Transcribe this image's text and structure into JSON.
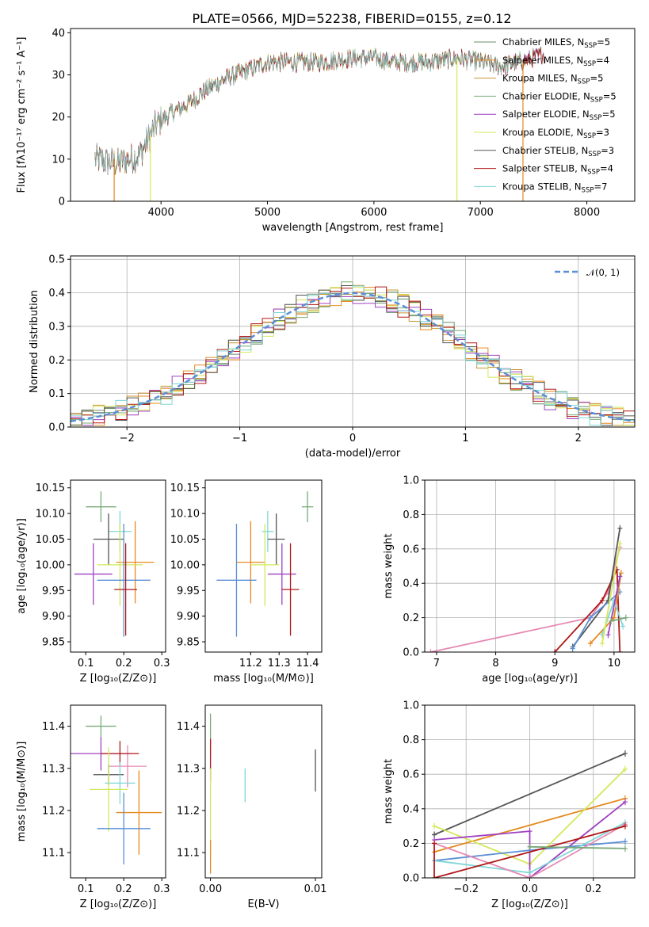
{
  "figure": {
    "title": "PLATE=0566, MJD=52238, FIBERID=0155, z=0.12"
  },
  "colors": {
    "cm_cat": "#6b8e6b",
    "sm_cat": "#e68a1e",
    "km_cat": "#c89633",
    "ce_cat": "#77aa77",
    "se_cat": "#a040c0",
    "ke_cat": "#d4e85a",
    "cs_cat": "#555555",
    "ss_cat": "#b01818",
    "ks_cat": "#7fd6d6"
  },
  "legend": {
    "entries": [
      {
        "label": "Chabrier MILES, N",
        "sub": "SSP",
        "tail": "=5",
        "color": "#6b8e6b"
      },
      {
        "label": "Salpeter MILES, N",
        "sub": "SSP",
        "tail": "=4",
        "color": "#e68a1e"
      },
      {
        "label": "Kroupa MILES, N",
        "sub": "SSP",
        "tail": "=5",
        "color": "#c89633"
      },
      {
        "label": "Chabrier ELODIE, N",
        "sub": "SSP",
        "tail": "=5",
        "color": "#77aa77"
      },
      {
        "label": "Salpeter ELODIE, N",
        "sub": "SSP",
        "tail": "=5",
        "color": "#a040c0"
      },
      {
        "label": "Kroupa ELODIE, N",
        "sub": "SSP",
        "tail": "=3",
        "color": "#d4e85a"
      },
      {
        "label": "Chabrier STELIB, N",
        "sub": "SSP",
        "tail": "=3",
        "color": "#555555"
      },
      {
        "label": "Salpeter STELIB, N",
        "sub": "SSP",
        "tail": "=4",
        "color": "#b01818"
      },
      {
        "label": "Kroupa STELIB, N",
        "sub": "SSP",
        "tail": "=7",
        "color": "#7fd6d6"
      }
    ],
    "normal_label": "𝒩(0, 1)",
    "placement": "top-right"
  },
  "chart_data": [
    {
      "id": "spectrum",
      "type": "line",
      "xlabel": "wavelength [Angstrom, rest frame]",
      "ylabel": "Flux [fλ10⁻¹⁷ erg cm⁻² s⁻¹ A⁻¹]",
      "xlim": [
        3150,
        8450
      ],
      "ylim": [
        0,
        41
      ],
      "xticks": [
        4000,
        5000,
        6000,
        7000,
        8000
      ],
      "yticks": [
        0,
        10,
        20,
        30,
        40
      ],
      "anchors": [
        [
          3380,
          10
        ],
        [
          3600,
          9
        ],
        [
          3800,
          11
        ],
        [
          3950,
          18
        ],
        [
          4100,
          21
        ],
        [
          4250,
          23
        ],
        [
          4400,
          26
        ],
        [
          4600,
          29
        ],
        [
          4800,
          31
        ],
        [
          5000,
          33
        ],
        [
          5200,
          33
        ],
        [
          5500,
          33
        ],
        [
          5800,
          34
        ],
        [
          6000,
          34
        ],
        [
          6200,
          33
        ],
        [
          6500,
          33
        ],
        [
          6800,
          34
        ],
        [
          7000,
          33
        ],
        [
          7200,
          32
        ],
        [
          7500,
          34
        ],
        [
          7600,
          35
        ]
      ],
      "vertical_drops": [
        3900,
        6780,
        7400
      ]
    },
    {
      "id": "residuals",
      "type": "histogram",
      "xlabel": "(data-model)/error",
      "ylabel": "Normed distribution",
      "xlim": [
        -2.5,
        2.5
      ],
      "ylim": [
        0,
        0.51
      ],
      "xticks": [
        -2,
        -1,
        0,
        1,
        2
      ],
      "yticks": [
        0,
        0.1,
        0.2,
        0.3,
        0.4,
        0.5
      ],
      "grid": true,
      "bin_width": 0.1,
      "normal_curve": {
        "mean": 0,
        "sigma": 1,
        "color": "#5b8fd6"
      }
    },
    {
      "id": "age_vs_Z",
      "type": "errorbar",
      "xlabel": "Z [log₁₀(Z/Z⊙)]",
      "ylabel": "age  [log₁₀(age/yr)]",
      "xlim": [
        0.06,
        0.31
      ],
      "ylim": [
        9.83,
        10.165
      ],
      "xticks": [
        0.1,
        0.2,
        0.3
      ],
      "yticks": [
        9.85,
        9.9,
        9.95,
        10.0,
        10.05,
        10.1,
        10.15
      ],
      "points": [
        {
          "x": 0.14,
          "y": 10.113,
          "xerr": 0.04,
          "yerr": 0.03,
          "color": "#77aa77"
        },
        {
          "x": 0.19,
          "y": 10.065,
          "xerr": 0.03,
          "yerr": 0.04,
          "color": "#7fd6d6"
        },
        {
          "x": 0.16,
          "y": 10.05,
          "xerr": 0.04,
          "yerr": 0.05,
          "color": "#555555"
        },
        {
          "x": 0.23,
          "y": 10.005,
          "xerr": 0.05,
          "yerr": 0.08,
          "color": "#e68a1e"
        },
        {
          "x": 0.19,
          "y": 10.0,
          "xerr": 0.06,
          "yerr": 0.08,
          "color": "#d4e85a"
        },
        {
          "x": 0.12,
          "y": 9.982,
          "xerr": 0.05,
          "yerr": 0.06,
          "color": "#a040c0"
        },
        {
          "x": 0.2,
          "y": 9.97,
          "xerr": 0.07,
          "yerr": 0.11,
          "color": "#5b8fd6"
        },
        {
          "x": 0.205,
          "y": 9.952,
          "xerr": 0.03,
          "yerr": 0.09,
          "color": "#b01818"
        }
      ]
    },
    {
      "id": "age_vs_mass",
      "type": "errorbar",
      "xlabel": "mass [log₁₀(M/M⊙)]",
      "ylabel": "",
      "xlim": [
        11.04,
        11.45
      ],
      "ylim": [
        9.83,
        10.165
      ],
      "xticks": [
        11.2,
        11.3,
        11.4
      ],
      "yticks": [
        9.85,
        9.9,
        9.95,
        10.0,
        10.05,
        10.1,
        10.15
      ],
      "points": [
        {
          "x": 11.4,
          "y": 10.113,
          "xerr": 0.02,
          "yerr": 0.03,
          "color": "#77aa77"
        },
        {
          "x": 11.26,
          "y": 10.065,
          "xerr": 0.02,
          "yerr": 0.04,
          "color": "#7fd6d6"
        },
        {
          "x": 11.29,
          "y": 10.05,
          "xerr": 0.03,
          "yerr": 0.05,
          "color": "#555555"
        },
        {
          "x": 11.2,
          "y": 10.005,
          "xerr": 0.05,
          "yerr": 0.08,
          "color": "#e68a1e"
        },
        {
          "x": 11.25,
          "y": 10.0,
          "xerr": 0.05,
          "yerr": 0.08,
          "color": "#d4e85a"
        },
        {
          "x": 11.31,
          "y": 9.982,
          "xerr": 0.05,
          "yerr": 0.06,
          "color": "#a040c0"
        },
        {
          "x": 11.15,
          "y": 9.97,
          "xerr": 0.07,
          "yerr": 0.11,
          "color": "#5b8fd6"
        },
        {
          "x": 11.34,
          "y": 9.952,
          "xerr": 0.03,
          "yerr": 0.09,
          "color": "#b01818"
        }
      ]
    },
    {
      "id": "weight_vs_age",
      "type": "line",
      "xlabel": "age  [log₁₀(age/yr)]",
      "ylabel": "mass weight",
      "xlim": [
        6.8,
        10.35
      ],
      "ylim": [
        0,
        1.0
      ],
      "xticks": [
        7,
        8,
        9,
        10
      ],
      "yticks": [
        0.0,
        0.2,
        0.4,
        0.6,
        0.8,
        1.0
      ],
      "grid": true,
      "series": [
        {
          "color": "#e68ab4",
          "x": [
            6.9,
            9.6,
            9.9,
            10.1
          ],
          "y": [
            0.0,
            0.2,
            0.35,
            0.61
          ]
        },
        {
          "color": "#b01818",
          "x": [
            9.0,
            9.8,
            10.05,
            10.1
          ],
          "y": [
            0.0,
            0.3,
            0.48,
            0.0
          ]
        },
        {
          "color": "#555555",
          "x": [
            9.3,
            9.9,
            10.1
          ],
          "y": [
            0.03,
            0.3,
            0.72
          ]
        },
        {
          "color": "#5b8fd6",
          "x": [
            9.3,
            9.6,
            10.1
          ],
          "y": [
            0.02,
            0.2,
            0.35
          ]
        },
        {
          "color": "#e68a1e",
          "x": [
            9.6,
            10.0,
            10.12
          ],
          "y": [
            0.05,
            0.2,
            0.46
          ]
        },
        {
          "color": "#7fd6d6",
          "x": [
            9.8,
            10.0,
            10.15
          ],
          "y": [
            0.1,
            0.3,
            0.15
          ]
        },
        {
          "color": "#d4e85a",
          "x": [
            9.8,
            10.1
          ],
          "y": [
            0.05,
            0.63
          ]
        },
        {
          "color": "#a040c0",
          "x": [
            9.9,
            10.1
          ],
          "y": [
            0.1,
            0.44
          ]
        },
        {
          "color": "#77aa77",
          "x": [
            9.95,
            10.2
          ],
          "y": [
            0.18,
            0.2
          ]
        }
      ]
    },
    {
      "id": "mass_vs_Z",
      "type": "errorbar",
      "xlabel": "Z [log₁₀(Z/Z⊙)]",
      "ylabel": "mass [log₁₀(M/M⊙)]",
      "xlim": [
        0.06,
        0.31
      ],
      "ylim": [
        11.04,
        11.45
      ],
      "xticks": [
        0.1,
        0.2,
        0.3
      ],
      "yticks": [
        11.1,
        11.2,
        11.3,
        11.4
      ],
      "points": [
        {
          "x": 0.14,
          "y": 11.4,
          "xerr": 0.04,
          "yerr": 0.025,
          "color": "#77aa77"
        },
        {
          "x": 0.14,
          "y": 11.335,
          "xerr": 0.08,
          "yerr": 0.04,
          "color": "#a040c0"
        },
        {
          "x": 0.21,
          "y": 11.305,
          "xerr": 0.05,
          "yerr": 0.05,
          "color": "#e68ab4"
        },
        {
          "x": 0.19,
          "y": 11.335,
          "xerr": 0.05,
          "yerr": 0.03,
          "color": "#b01818"
        },
        {
          "x": 0.16,
          "y": 11.285,
          "xerr": 0.04,
          "yerr": 0.025,
          "color": "#555555"
        },
        {
          "x": 0.19,
          "y": 11.265,
          "xerr": 0.04,
          "yerr": 0.05,
          "color": "#7fd6d6"
        },
        {
          "x": 0.16,
          "y": 11.25,
          "xerr": 0.05,
          "yerr": 0.1,
          "color": "#d4e85a"
        },
        {
          "x": 0.24,
          "y": 11.195,
          "xerr": 0.06,
          "yerr": 0.1,
          "color": "#e68a1e"
        },
        {
          "x": 0.2,
          "y": 11.157,
          "xerr": 0.07,
          "yerr": 0.085,
          "color": "#5b8fd6"
        }
      ]
    },
    {
      "id": "mass_vs_ebv",
      "type": "errorbar",
      "xlabel": "E(B-V)",
      "ylabel": "",
      "xlim": [
        -0.0005,
        0.0106
      ],
      "ylim": [
        11.04,
        11.45
      ],
      "xticks": [
        0.0,
        0.01
      ],
      "yticks": [
        11.1,
        11.2,
        11.3,
        11.4
      ],
      "points": [
        {
          "x": 0.0,
          "y": 11.38,
          "xerr": 0,
          "yerr": 0.05,
          "color": "#77aa77"
        },
        {
          "x": 0.0,
          "y": 11.32,
          "xerr": 0,
          "yerr": 0.05,
          "color": "#b01818"
        },
        {
          "x": 0.0,
          "y": 11.2,
          "xerr": 0,
          "yerr": 0.1,
          "color": "#d4e85a"
        },
        {
          "x": 0.0,
          "y": 11.09,
          "xerr": 0,
          "yerr": 0.04,
          "color": "#e68a1e"
        },
        {
          "x": 0.0033,
          "y": 11.26,
          "xerr": 0,
          "yerr": 0.04,
          "color": "#7fd6d6"
        },
        {
          "x": 0.01,
          "y": 11.295,
          "xerr": 0,
          "yerr": 0.05,
          "color": "#555555"
        }
      ]
    },
    {
      "id": "weight_vs_Z",
      "type": "line",
      "xlabel": "Z [log₁₀(Z/Z⊙)]",
      "ylabel": "mass weight",
      "xlim": [
        -0.33,
        0.33
      ],
      "ylim": [
        0,
        1.0
      ],
      "xticks": [
        -0.2,
        0.0,
        0.2
      ],
      "yticks": [
        0.0,
        0.2,
        0.4,
        0.6,
        0.8,
        1.0
      ],
      "grid": true,
      "series": [
        {
          "color": "#555555",
          "x": [
            -0.3,
            0.3,
            -0.3
          ],
          "y": [
            0.25,
            0.72,
            0.25
          ]
        },
        {
          "color": "#e68a1e",
          "x": [
            -0.3,
            0.3
          ],
          "y": [
            0.15,
            0.46
          ]
        },
        {
          "color": "#d4e85a",
          "x": [
            -0.3,
            0.0,
            0.3
          ],
          "y": [
            0.3,
            0.08,
            0.63
          ]
        },
        {
          "color": "#a040c0",
          "x": [
            -0.3,
            0.0,
            0.0,
            0.3
          ],
          "y": [
            0.22,
            0.27,
            0.0,
            0.44
          ]
        },
        {
          "color": "#5b8fd6",
          "x": [
            -0.3,
            0.0,
            0.3
          ],
          "y": [
            0.1,
            0.16,
            0.21
          ]
        },
        {
          "color": "#7fd6d6",
          "x": [
            -0.3,
            0.0,
            0.3
          ],
          "y": [
            0.1,
            0.03,
            0.32
          ]
        },
        {
          "color": "#e68ab4",
          "x": [
            -0.3,
            0.0,
            0.3
          ],
          "y": [
            0.2,
            0.0,
            0.31
          ]
        },
        {
          "color": "#b01818",
          "x": [
            -0.3,
            -0.3,
            0.3
          ],
          "y": [
            0.2,
            0.0,
            0.3
          ]
        },
        {
          "color": "#77aa77",
          "x": [
            0.0,
            0.3
          ],
          "y": [
            0.18,
            0.17
          ]
        }
      ]
    }
  ]
}
